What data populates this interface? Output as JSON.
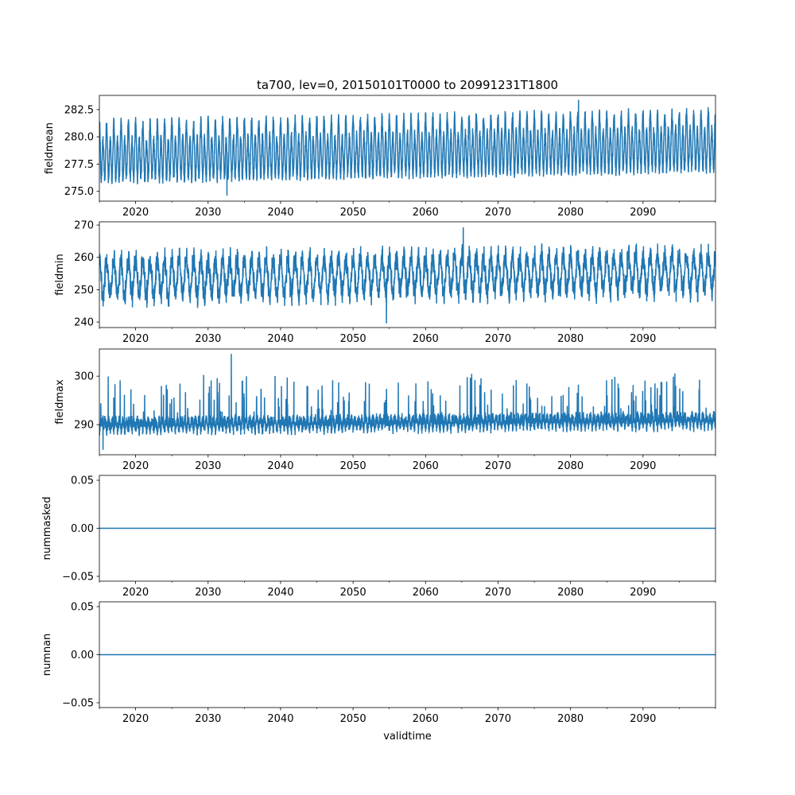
{
  "chart_data": {
    "type": "line",
    "title": "ta700, lev=0, 20150101T0000 to 20991231T1800",
    "xlabel": "validtime",
    "xlim": [
      2015,
      2100
    ],
    "x_ticks": [
      2020,
      2030,
      2040,
      2050,
      2060,
      2070,
      2080,
      2090
    ],
    "x_tick_labels": [
      "2020",
      "2030",
      "2040",
      "2050",
      "2060",
      "2070",
      "2080",
      "2090"
    ],
    "x_minor_ticks": [
      2015,
      2025,
      2035,
      2045,
      2055,
      2065,
      2075,
      2085,
      2095,
      2100
    ],
    "line_color": "#1f77b4",
    "panels": [
      {
        "ylabel": "fieldmean",
        "ylim": [
          274.1,
          283.8
        ],
        "y_ticks": [
          275.0,
          277.5,
          280.0,
          282.5
        ],
        "y_tick_labels": [
          "275.0",
          "277.5",
          "280.0",
          "282.5"
        ],
        "series": {
          "mode": "semiannual",
          "mean_start": 278.3,
          "mean_end": 279.3,
          "amplitude": 2.6,
          "noise": 0.5,
          "min": 274.6,
          "max": 283.4
        }
      },
      {
        "ylabel": "fieldmin",
        "ylim": [
          238.3,
          271
        ],
        "y_ticks": [
          240,
          250,
          260,
          270
        ],
        "y_tick_labels": [
          "240",
          "250",
          "260",
          "270"
        ],
        "series": {
          "mode": "annual",
          "mean_start": 253.5,
          "mean_end": 255.5,
          "amplitude": 5.5,
          "noise": 2.8,
          "min": 239.6,
          "max": 269.3
        }
      },
      {
        "ylabel": "fieldmax",
        "ylim": [
          283.8,
          305.6
        ],
        "y_ticks": [
          290,
          300
        ],
        "y_tick_labels": [
          "290",
          "300"
        ],
        "series": {
          "mode": "spiky",
          "mean_start": 287.5,
          "mean_end": 288.5,
          "amplitude": 2.0,
          "noise": 1.2,
          "min": 284.8,
          "max": 304.6
        }
      },
      {
        "ylabel": "nummasked",
        "ylim": [
          -0.055,
          0.055
        ],
        "y_ticks": [
          -0.05,
          0.0,
          0.05
        ],
        "y_tick_labels": [
          "−0.05",
          "0.00",
          "0.05"
        ],
        "series": {
          "mode": "constant",
          "value": 0
        }
      },
      {
        "ylabel": "numnan",
        "ylim": [
          -0.055,
          0.055
        ],
        "y_ticks": [
          -0.05,
          0.0,
          0.05
        ],
        "y_tick_labels": [
          "−0.05",
          "0.00",
          "0.05"
        ],
        "series": {
          "mode": "constant",
          "value": 0
        }
      }
    ]
  }
}
